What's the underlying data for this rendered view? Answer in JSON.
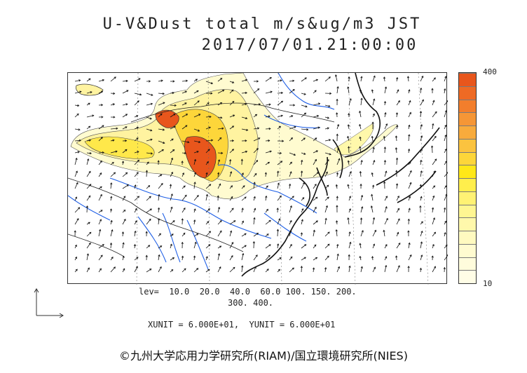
{
  "title": {
    "line1": "U-V&Dust total m/s&ug/m3 JST",
    "line2": "2017/07/01.21:00:00"
  },
  "colorbar": {
    "max_label": "400",
    "min_label": "10",
    "colors": [
      "#e8561c",
      "#ee6a24",
      "#f27e2c",
      "#f59636",
      "#f8ab3c",
      "#fbc33f",
      "#fdd63a",
      "#ffe818",
      "#ffee4c",
      "#fff274",
      "#fff692",
      "#fff8ab",
      "#fffac0",
      "#fffbd0",
      "#fffcdc",
      "#fffde6"
    ]
  },
  "levels": {
    "line1": "lev=  10.0  20.0  40.0  60.0 100. 150. 200.",
    "line2": "300. 400."
  },
  "units": {
    "text": "XUNIT = 6.000E+01,  YUNIT = 6.000E+01"
  },
  "copyright": "©九州大学応用力学研究所(RIAM)/国立環境研究所(NIES)"
}
